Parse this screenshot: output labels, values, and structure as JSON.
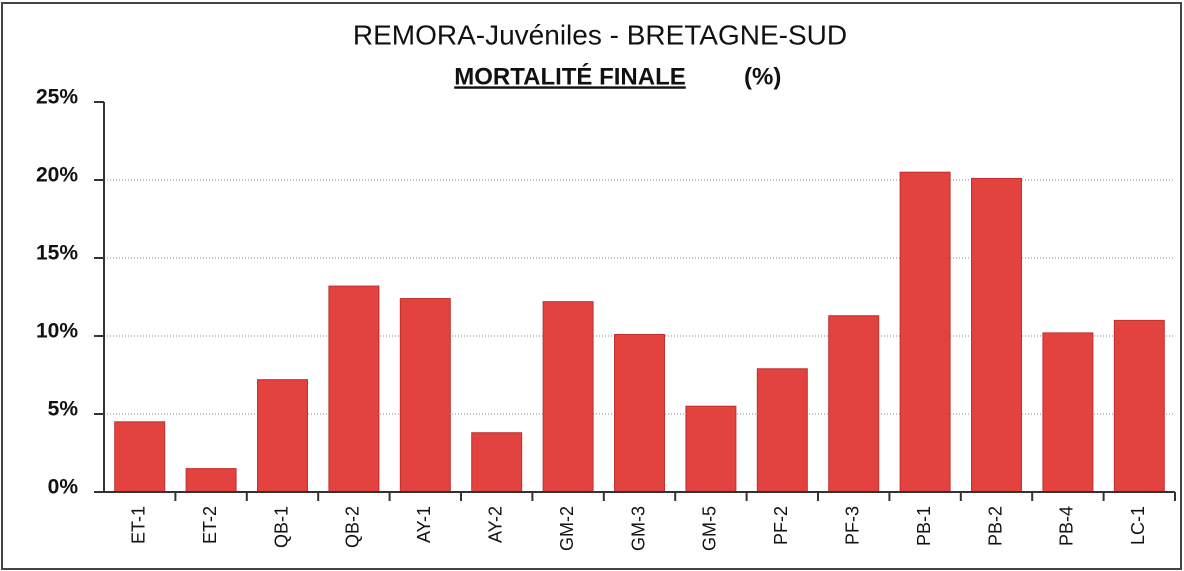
{
  "chart_data": {
    "type": "bar",
    "title": "REMORA-Juvéniles - BRETAGNE-SUD",
    "subtitle": [
      "MORTALITÉ FINALE",
      "(%)"
    ],
    "categories": [
      "ET-1",
      "ET-2",
      "QB-1",
      "QB-2",
      "AY-1",
      "AY-2",
      "GM-2",
      "GM-3",
      "GM-5",
      "PF-2",
      "PF-3",
      "PB-1",
      "PB-2",
      "PB-4",
      "LC-1"
    ],
    "values": [
      4.5,
      1.5,
      7.2,
      13.2,
      12.4,
      3.8,
      12.2,
      10.1,
      5.5,
      7.9,
      11.3,
      20.5,
      20.1,
      10.2,
      11.0
    ],
    "color": "#e2433f",
    "ylim": [
      0,
      25
    ],
    "yticks": [
      {
        "value": 0,
        "label": "0%"
      },
      {
        "value": 5,
        "label": "5%"
      },
      {
        "value": 10,
        "label": "10%"
      },
      {
        "value": 15,
        "label": "15%"
      },
      {
        "value": 20,
        "label": "20%"
      },
      {
        "value": 25,
        "label": "25%"
      }
    ],
    "grid": true
  }
}
